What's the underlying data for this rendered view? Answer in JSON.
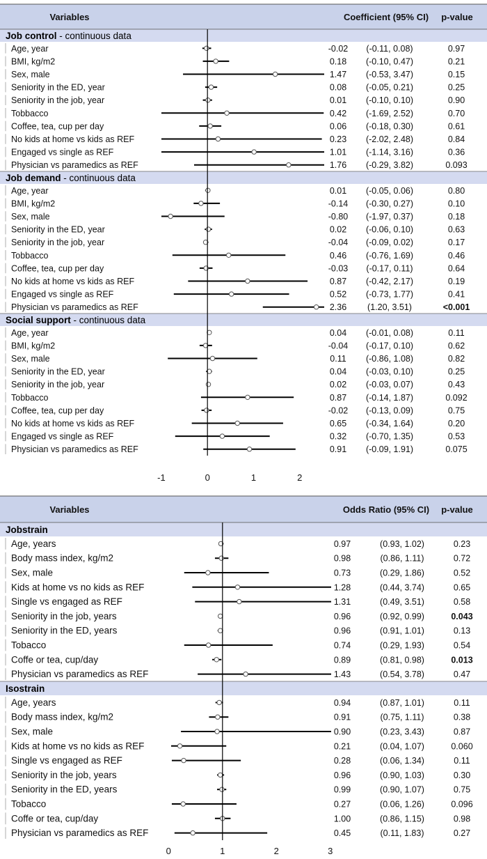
{
  "chart_data": [
    {
      "type": "forest",
      "title": "",
      "header": {
        "variables": "Variables",
        "estimate": "Coefficient (95% CI)",
        "pvalue": "p-value"
      },
      "xlim": [
        -1,
        2
      ],
      "xticks": [
        "-1",
        "0",
        "1",
        "2"
      ],
      "reference_line": 0,
      "groups": [
        {
          "name": "Job control",
          "suffix": " - continuous data",
          "rows": [
            {
              "label": "Age, year",
              "est": -0.02,
              "lo": -0.11,
              "hi": 0.08,
              "est_text": "-0.02",
              "ci_text": "(-0.11, 0.08)",
              "p": "0.97",
              "sig": false
            },
            {
              "label": "BMI, kg/m2",
              "est": 0.18,
              "lo": -0.1,
              "hi": 0.47,
              "est_text": "0.18",
              "ci_text": "(-0.10, 0.47)",
              "p": "0.21",
              "sig": false
            },
            {
              "label": "Sex, male",
              "est": 1.47,
              "lo": -0.53,
              "hi": 3.47,
              "est_text": "1.47",
              "ci_text": "(-0.53, 3.47)",
              "p": "0.15",
              "sig": false
            },
            {
              "label": "Seniority in the ED, year",
              "est": 0.08,
              "lo": -0.05,
              "hi": 0.21,
              "est_text": "0.08",
              "ci_text": "(-0.05, 0.21)",
              "p": "0.25",
              "sig": false
            },
            {
              "label": "Seniority in the job, year",
              "est": 0.01,
              "lo": -0.1,
              "hi": 0.1,
              "est_text": "0.01",
              "ci_text": "(-0.10, 0.10)",
              "p": "0.90",
              "sig": false
            },
            {
              "label": "Tobbacco",
              "est": 0.42,
              "lo": -1.69,
              "hi": 2.52,
              "est_text": "0.42",
              "ci_text": "(-1.69, 2.52)",
              "p": "0.70",
              "sig": false
            },
            {
              "label": "Coffee, tea, cup per day",
              "est": 0.06,
              "lo": -0.18,
              "hi": 0.3,
              "est_text": "0.06",
              "ci_text": "(-0.18, 0.30)",
              "p": "0.61",
              "sig": false
            },
            {
              "label": "No kids at home vs kids as REF",
              "est": 0.23,
              "lo": -2.02,
              "hi": 2.48,
              "est_text": "0.23",
              "ci_text": "(-2.02, 2.48)",
              "p": "0.84",
              "sig": false
            },
            {
              "label": "Engaged vs single as REF",
              "est": 1.01,
              "lo": -1.14,
              "hi": 3.16,
              "est_text": "1.01",
              "ci_text": "(-1.14, 3.16)",
              "p": "0.36",
              "sig": false
            },
            {
              "label": "Physician vs paramedics as REF",
              "est": 1.76,
              "lo": -0.29,
              "hi": 3.82,
              "est_text": "1.76",
              "ci_text": "(-0.29, 3.82)",
              "p": "0.093",
              "sig": false
            }
          ]
        },
        {
          "name": "Job demand",
          "suffix": " - continuous data",
          "rows": [
            {
              "label": "Age, year",
              "est": 0.01,
              "lo": -0.05,
              "hi": 0.06,
              "est_text": "0.01",
              "ci_text": "(-0.05, 0.06)",
              "p": "0.80",
              "sig": false
            },
            {
              "label": "BMI, kg/m2",
              "est": -0.14,
              "lo": -0.3,
              "hi": 0.27,
              "est_text": "-0.14",
              "ci_text": "(-0.30, 0.27)",
              "p": "0.10",
              "sig": false
            },
            {
              "label": "Sex, male",
              "est": -0.8,
              "lo": -1.97,
              "hi": 0.37,
              "est_text": "-0.80",
              "ci_text": "(-1.97, 0.37)",
              "p": "0.18",
              "sig": false
            },
            {
              "label": "Seniority in the ED, year",
              "est": 0.02,
              "lo": -0.06,
              "hi": 0.1,
              "est_text": "0.02",
              "ci_text": "(-0.06, 0.10)",
              "p": "0.63",
              "sig": false
            },
            {
              "label": "Seniority in the job, year",
              "est": -0.04,
              "lo": -0.09,
              "hi": 0.02,
              "est_text": "-0.04",
              "ci_text": "(-0.09, 0.02)",
              "p": "0.17",
              "sig": false
            },
            {
              "label": "Tobbacco",
              "est": 0.46,
              "lo": -0.76,
              "hi": 1.69,
              "est_text": "0.46",
              "ci_text": "(-0.76, 1.69)",
              "p": "0.46",
              "sig": false
            },
            {
              "label": "Coffee, tea, cup per day",
              "est": -0.03,
              "lo": -0.17,
              "hi": 0.11,
              "est_text": "-0.03",
              "ci_text": "(-0.17, 0.11)",
              "p": "0.64",
              "sig": false
            },
            {
              "label": "No kids at home vs kids as REF",
              "est": 0.87,
              "lo": -0.42,
              "hi": 2.17,
              "est_text": "0.87",
              "ci_text": "(-0.42, 2.17)",
              "p": "0.19",
              "sig": false
            },
            {
              "label": "Engaged vs single as REF",
              "est": 0.52,
              "lo": -0.73,
              "hi": 1.77,
              "est_text": "0.52",
              "ci_text": "(-0.73, 1.77)",
              "p": "0.41",
              "sig": false
            },
            {
              "label": "Physician vs paramedics as REF",
              "est": 2.36,
              "lo": 1.2,
              "hi": 3.51,
              "est_text": "2.36",
              "ci_text": "(1.20, 3.51)",
              "p": "<0.001",
              "sig": true
            }
          ]
        },
        {
          "name": "Social support",
          "suffix": " - continuous data",
          "rows": [
            {
              "label": "Age, year",
              "est": 0.04,
              "lo": -0.01,
              "hi": 0.08,
              "est_text": "0.04",
              "ci_text": "(-0.01, 0.08)",
              "p": "0.11",
              "sig": false
            },
            {
              "label": "BMI, kg/m2",
              "est": -0.04,
              "lo": -0.17,
              "hi": 0.1,
              "est_text": "-0.04",
              "ci_text": "(-0.17, 0.10)",
              "p": "0.62",
              "sig": false
            },
            {
              "label": "Sex, male",
              "est": 0.11,
              "lo": -0.86,
              "hi": 1.08,
              "est_text": "0.11",
              "ci_text": "(-0.86, 1.08)",
              "p": "0.82",
              "sig": false
            },
            {
              "label": "Seniority in the ED, year",
              "est": 0.04,
              "lo": -0.03,
              "hi": 0.1,
              "est_text": "0.04",
              "ci_text": "(-0.03, 0.10)",
              "p": "0.25",
              "sig": false
            },
            {
              "label": "Seniority in the job, year",
              "est": 0.02,
              "lo": -0.03,
              "hi": 0.07,
              "est_text": "0.02",
              "ci_text": "(-0.03, 0.07)",
              "p": "0.43",
              "sig": false
            },
            {
              "label": "Tobbacco",
              "est": 0.87,
              "lo": -0.14,
              "hi": 1.87,
              "est_text": "0.87",
              "ci_text": "(-0.14, 1.87)",
              "p": "0.092",
              "sig": false
            },
            {
              "label": "Coffee, tea, cup per day",
              "est": -0.02,
              "lo": -0.13,
              "hi": 0.09,
              "est_text": "-0.02",
              "ci_text": "(-0.13, 0.09)",
              "p": "0.75",
              "sig": false
            },
            {
              "label": "No kids at home vs kids as REF",
              "est": 0.65,
              "lo": -0.34,
              "hi": 1.64,
              "est_text": "0.65",
              "ci_text": "(-0.34, 1.64)",
              "p": "0.20",
              "sig": false
            },
            {
              "label": "Engaged vs single as REF",
              "est": 0.32,
              "lo": -0.7,
              "hi": 1.35,
              "est_text": "0.32",
              "ci_text": "(-0.70, 1.35)",
              "p": "0.53",
              "sig": false
            },
            {
              "label": "Physician vs paramedics as REF",
              "est": 0.91,
              "lo": -0.09,
              "hi": 1.91,
              "est_text": "0.91",
              "ci_text": "(-0.09, 1.91)",
              "p": "0.075",
              "sig": false
            }
          ]
        }
      ]
    },
    {
      "type": "forest",
      "title": "",
      "header": {
        "variables": "Variables",
        "estimate": "Odds Ratio (95% CI)",
        "pvalue": "p-value"
      },
      "xlim": [
        0,
        3
      ],
      "xticks": [
        "0",
        "1",
        "2",
        "3"
      ],
      "reference_line": 1,
      "groups": [
        {
          "name": "Jobstrain",
          "suffix": "",
          "rows": [
            {
              "label": "Age, years",
              "est": 0.97,
              "lo": 0.93,
              "hi": 1.02,
              "est_text": "0.97",
              "ci_text": "(0.93, 1.02)",
              "p": "0.23",
              "sig": false
            },
            {
              "label": "Body mass index, kg/m2",
              "est": 0.98,
              "lo": 0.86,
              "hi": 1.11,
              "est_text": "0.98",
              "ci_text": "(0.86, 1.11)",
              "p": "0.72",
              "sig": false
            },
            {
              "label": "Sex, male",
              "est": 0.73,
              "lo": 0.29,
              "hi": 1.86,
              "est_text": "0.73",
              "ci_text": "(0.29, 1.86)",
              "p": "0.52",
              "sig": false
            },
            {
              "label": "Kids at home vs no kids as REF",
              "est": 1.28,
              "lo": 0.44,
              "hi": 3.74,
              "est_text": "1.28",
              "ci_text": "(0.44, 3.74)",
              "p": "0.65",
              "sig": false
            },
            {
              "label": "Single vs engaged as REF",
              "est": 1.31,
              "lo": 0.49,
              "hi": 3.51,
              "est_text": "1.31",
              "ci_text": "(0.49, 3.51)",
              "p": "0.58",
              "sig": false
            },
            {
              "label": "Seniority in the job, years",
              "est": 0.96,
              "lo": 0.92,
              "hi": 0.99,
              "est_text": "0.96",
              "ci_text": "(0.92, 0.99)",
              "p": "0.043",
              "sig": true
            },
            {
              "label": "Seniority in the ED, years",
              "est": 0.96,
              "lo": 0.91,
              "hi": 1.01,
              "est_text": "0.96",
              "ci_text": "(0.91, 1.01)",
              "p": "0.13",
              "sig": false
            },
            {
              "label": "Tobacco",
              "est": 0.74,
              "lo": 0.29,
              "hi": 1.93,
              "est_text": "0.74",
              "ci_text": "(0.29, 1.93)",
              "p": "0.54",
              "sig": false
            },
            {
              "label": "Coffe or tea, cup/day",
              "est": 0.89,
              "lo": 0.81,
              "hi": 0.98,
              "est_text": "0.89",
              "ci_text": "(0.81, 0.98)",
              "p": "0.013",
              "sig": true
            },
            {
              "label": "Physician vs paramedics as REF",
              "est": 1.43,
              "lo": 0.54,
              "hi": 3.78,
              "est_text": "1.43",
              "ci_text": "(0.54, 3.78)",
              "p": "0.47",
              "sig": false
            }
          ]
        },
        {
          "name": "Isostrain",
          "suffix": "",
          "rows": [
            {
              "label": "Age, years",
              "est": 0.94,
              "lo": 0.87,
              "hi": 1.01,
              "est_text": "0.94",
              "ci_text": "(0.87, 1.01)",
              "p": "0.11",
              "sig": false
            },
            {
              "label": "Body mass index, kg/m2",
              "est": 0.91,
              "lo": 0.75,
              "hi": 1.11,
              "est_text": "0.91",
              "ci_text": "(0.75, 1.11)",
              "p": "0.38",
              "sig": false
            },
            {
              "label": "Sex, male",
              "est": 0.9,
              "lo": 0.23,
              "hi": 3.43,
              "est_text": "0.90",
              "ci_text": "(0.23, 3.43)",
              "p": "0.87",
              "sig": false
            },
            {
              "label": "Kids at home vs no kids as REF",
              "est": 0.21,
              "lo": 0.04,
              "hi": 1.07,
              "est_text": "0.21",
              "ci_text": "(0.04, 1.07)",
              "p": "0.060",
              "sig": false
            },
            {
              "label": "Single vs engaged as REF",
              "est": 0.28,
              "lo": 0.06,
              "hi": 1.34,
              "est_text": "0.28",
              "ci_text": "(0.06, 1.34)",
              "p": "0.11",
              "sig": false
            },
            {
              "label": "Seniority in the job, years",
              "est": 0.96,
              "lo": 0.9,
              "hi": 1.03,
              "est_text": "0.96",
              "ci_text": "(0.90, 1.03)",
              "p": "0.30",
              "sig": false
            },
            {
              "label": "Seniority in the ED, years",
              "est": 0.99,
              "lo": 0.9,
              "hi": 1.07,
              "est_text": "0.99",
              "ci_text": "(0.90, 1.07)",
              "p": "0.75",
              "sig": false
            },
            {
              "label": "Tobacco",
              "est": 0.27,
              "lo": 0.06,
              "hi": 1.26,
              "est_text": "0.27",
              "ci_text": "(0.06, 1.26)",
              "p": "0.096",
              "sig": false
            },
            {
              "label": "Coffe or tea, cup/day",
              "est": 1.0,
              "lo": 0.86,
              "hi": 1.15,
              "est_text": "1.00",
              "ci_text": "(0.86, 1.15)",
              "p": "0.98",
              "sig": false
            },
            {
              "label": "Physician vs paramedics as REF",
              "est": 0.45,
              "lo": 0.11,
              "hi": 1.83,
              "est_text": "0.45",
              "ci_text": "(0.11, 1.83)",
              "p": "0.27",
              "sig": false
            }
          ]
        }
      ]
    }
  ]
}
